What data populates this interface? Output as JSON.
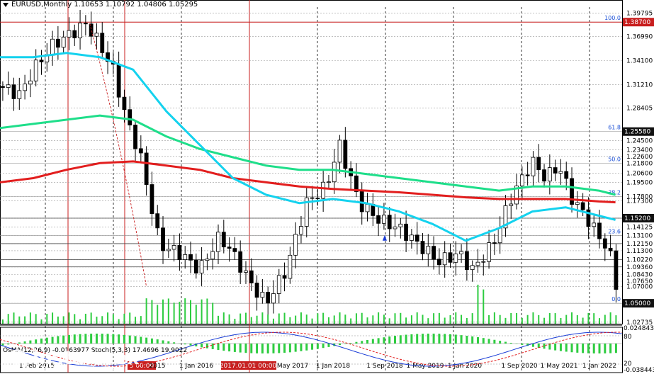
{
  "window": {
    "symbol_line": "EURUSD,Monthly  1.10653 1.10792 1.04806 1.05295",
    "osc_line": "OsMA(12,26,9) -0.0163977  Stoch(5,3,3) 17.4696 19.9022"
  },
  "logo": {
    "name": "instaforex",
    "tagline": "Instant Forex Trading"
  },
  "colors": {
    "bull": "#000000",
    "bear": "#000000",
    "ema_fast": "#14d2ee",
    "ema_mid": "#1ede8a",
    "ema_slow": "#e21e1e",
    "grid": "#000000",
    "vline": "#c81e1e",
    "hline": "#c81e1e",
    "osma": "#2ecc40",
    "stoch_main": "#1a3cd6",
    "stoch_signal": "#e21e1e",
    "fib_text": "#1a4fd6",
    "price_tag_bg": "#000000",
    "price_tag_red": "#c81e1e"
  },
  "chart_data": {
    "type": "candlestick",
    "title": "EURUSD,Monthly",
    "ohlc_last": {
      "open": 1.10653,
      "high": 1.10792,
      "low": 1.04806,
      "close": 1.05295
    },
    "y_axis_ticks": [
      "1.39795",
      "1.36990",
      "1.34100",
      "1.31210",
      "1.28405",
      "1.25580",
      "1.24500",
      "1.23400",
      "1.22600",
      "1.21800",
      "1.20600",
      "1.19500",
      "1.17800",
      "1.17300",
      "1.15200",
      "1.14125",
      "1.13100",
      "1.12150",
      "1.11300",
      "1.10220",
      "1.09360",
      "1.08430",
      "1.07650",
      "1.07000",
      "1.05000",
      "1.02735",
      "0.0248435",
      "-0.0384435"
    ],
    "y_axis_tick_values": [
      1.39795,
      1.3699,
      1.341,
      1.3121,
      1.28405,
      1.2558,
      1.245,
      1.234,
      1.226,
      1.218,
      1.206,
      1.195,
      1.178,
      1.173,
      1.152,
      1.14125,
      1.131,
      1.1215,
      1.113,
      1.1022,
      1.0936,
      1.0843,
      1.0765,
      1.07,
      1.05,
      1.02735
    ],
    "x_axis_ticks": [
      "1 Feb 2015",
      "5 00:00",
      "2015",
      "1 Jan 2016",
      "2017.01.01 00:00",
      "May 2017",
      "1 Jan 2018",
      "1 Sep 2018",
      "1 May 2019",
      "1 Jan 2020",
      "1 Sep 2020",
      "1 May 2021",
      "1 Jan 2022"
    ],
    "highlighted_price": "1.38700",
    "fib_levels": [
      {
        "label": "100.0",
        "value": 1.387
      },
      {
        "label": "61.8",
        "value": 1.2558
      },
      {
        "label": "50.0",
        "value": 1.218
      },
      {
        "label": "38.2",
        "value": 1.178
      },
      {
        "label": "23.6",
        "value": 1.131
      },
      {
        "label": "0.0",
        "value": 1.05
      }
    ],
    "emphasized_levels": [
      1.152,
      1.1215,
      1.1022,
      1.0936
    ],
    "ema_fast": [
      [
        2013.0,
        1.345
      ],
      [
        2013.5,
        1.345
      ],
      [
        2014.0,
        1.35
      ],
      [
        2014.5,
        1.345
      ],
      [
        2015.0,
        1.33
      ],
      [
        2015.5,
        1.28
      ],
      [
        2016.0,
        1.24
      ],
      [
        2016.5,
        1.2
      ],
      [
        2017.0,
        1.18
      ],
      [
        2017.5,
        1.17
      ],
      [
        2018.0,
        1.175
      ],
      [
        2018.5,
        1.17
      ],
      [
        2019.0,
        1.16
      ],
      [
        2019.5,
        1.145
      ],
      [
        2020.0,
        1.125
      ],
      [
        2020.5,
        1.14
      ],
      [
        2021.0,
        1.16
      ],
      [
        2021.5,
        1.165
      ],
      [
        2022.0,
        1.155
      ],
      [
        2022.25,
        1.15
      ]
    ],
    "ema_mid": [
      [
        2013.0,
        1.26
      ],
      [
        2013.5,
        1.265
      ],
      [
        2014.0,
        1.27
      ],
      [
        2014.5,
        1.275
      ],
      [
        2015.0,
        1.27
      ],
      [
        2015.5,
        1.25
      ],
      [
        2016.0,
        1.235
      ],
      [
        2016.5,
        1.225
      ],
      [
        2017.0,
        1.215
      ],
      [
        2017.5,
        1.21
      ],
      [
        2018.0,
        1.21
      ],
      [
        2018.5,
        1.205
      ],
      [
        2019.0,
        1.2
      ],
      [
        2019.5,
        1.195
      ],
      [
        2020.0,
        1.19
      ],
      [
        2020.5,
        1.185
      ],
      [
        2021.0,
        1.19
      ],
      [
        2021.5,
        1.19
      ],
      [
        2022.0,
        1.185
      ],
      [
        2022.25,
        1.18
      ]
    ],
    "ema_slow": [
      [
        2013.0,
        1.195
      ],
      [
        2013.5,
        1.2
      ],
      [
        2014.0,
        1.21
      ],
      [
        2014.5,
        1.218
      ],
      [
        2015.0,
        1.22
      ],
      [
        2015.5,
        1.215
      ],
      [
        2016.0,
        1.21
      ],
      [
        2016.5,
        1.2
      ],
      [
        2017.0,
        1.195
      ],
      [
        2017.5,
        1.19
      ],
      [
        2018.0,
        1.187
      ],
      [
        2018.5,
        1.185
      ],
      [
        2019.0,
        1.183
      ],
      [
        2019.5,
        1.18
      ],
      [
        2020.0,
        1.177
      ],
      [
        2020.5,
        1.175
      ],
      [
        2021.0,
        1.175
      ],
      [
        2021.5,
        1.175
      ],
      [
        2022.0,
        1.172
      ],
      [
        2022.25,
        1.171
      ]
    ]
  }
}
